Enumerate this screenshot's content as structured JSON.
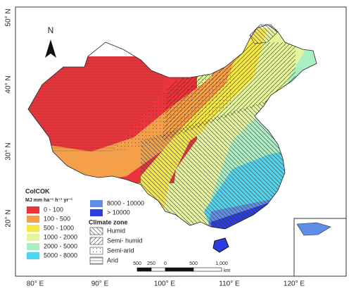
{
  "map": {
    "axes": {
      "latitude": [
        "50° N",
        "40° N",
        "30° N",
        "20° N"
      ],
      "longitude": [
        "80° E",
        "90° E",
        "100° E",
        "110° E",
        "120° E"
      ]
    },
    "north": "N",
    "legend": {
      "title": "ColCOK",
      "unit": "MJ mm ha⁻¹ h⁻¹ yr⁻¹",
      "classes": [
        {
          "label": "0 - 100",
          "color": "#e8343a"
        },
        {
          "label": "100 - 500",
          "color": "#f4a04a"
        },
        {
          "label": "500 - 1000",
          "color": "#f5e64a"
        },
        {
          "label": "1000 - 2000",
          "color": "#e4f59c"
        },
        {
          "label": "2000 - 5000",
          "color": "#a8efc2"
        },
        {
          "label": "5000 - 8000",
          "color": "#4cd6f0"
        },
        {
          "label": "8000 - 10000",
          "color": "#5e8ee8"
        },
        {
          "label": "> 10000",
          "color": "#2a3ce2"
        }
      ],
      "climate_title": "Climate zone",
      "climate_zones": [
        "Humid",
        "Semi- humid",
        "Semi-arid",
        "Arid"
      ]
    },
    "scale_bar": {
      "labels": [
        "500",
        "250",
        "0",
        "500",
        "1,000"
      ],
      "unit": "km"
    }
  }
}
